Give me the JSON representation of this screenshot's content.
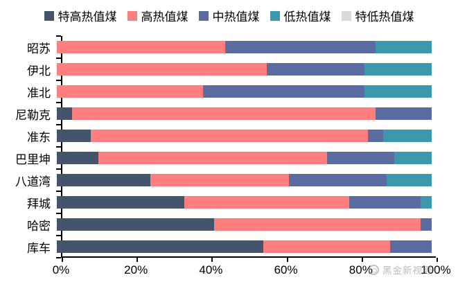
{
  "chart_data": {
    "type": "bar",
    "orientation": "horizontal",
    "stacked": true,
    "unit": "percent",
    "title": "",
    "xlabel": "",
    "ylabel": "",
    "xlim": [
      0,
      100
    ],
    "grid": false,
    "legend_position": "top",
    "categories": [
      "昭苏",
      "伊北",
      "准北",
      "尼勒克",
      "准东",
      "巴里坤",
      "八道湾",
      "拜城",
      "哈密",
      "库车"
    ],
    "series": [
      {
        "name": "特高热值煤",
        "color": "#44546A",
        "values": [
          0,
          0,
          0,
          4,
          9,
          11,
          25,
          34,
          42,
          55
        ]
      },
      {
        "name": "高热值煤",
        "color": "#FF7E7E",
        "values": [
          45,
          56,
          39,
          81,
          74,
          61,
          37,
          44,
          55,
          34
        ]
      },
      {
        "name": "中热值煤",
        "color": "#5B6CA0",
        "values": [
          40,
          26,
          43,
          15,
          4,
          18,
          26,
          19,
          3,
          11
        ]
      },
      {
        "name": "低热值煤",
        "color": "#3D97AD",
        "values": [
          15,
          18,
          18,
          0,
          13,
          10,
          12,
          3,
          0,
          0
        ]
      },
      {
        "name": "特低热值煤",
        "color": "#D9D9D9",
        "values": [
          0,
          0,
          0,
          0,
          0,
          0,
          0,
          0,
          0,
          0
        ]
      }
    ],
    "x_ticks": [
      "0%",
      "20%",
      "40%",
      "60%",
      "80%",
      "100%"
    ]
  },
  "watermark": {
    "text": "黑金新视野",
    "icon": "ring-logo-icon"
  }
}
